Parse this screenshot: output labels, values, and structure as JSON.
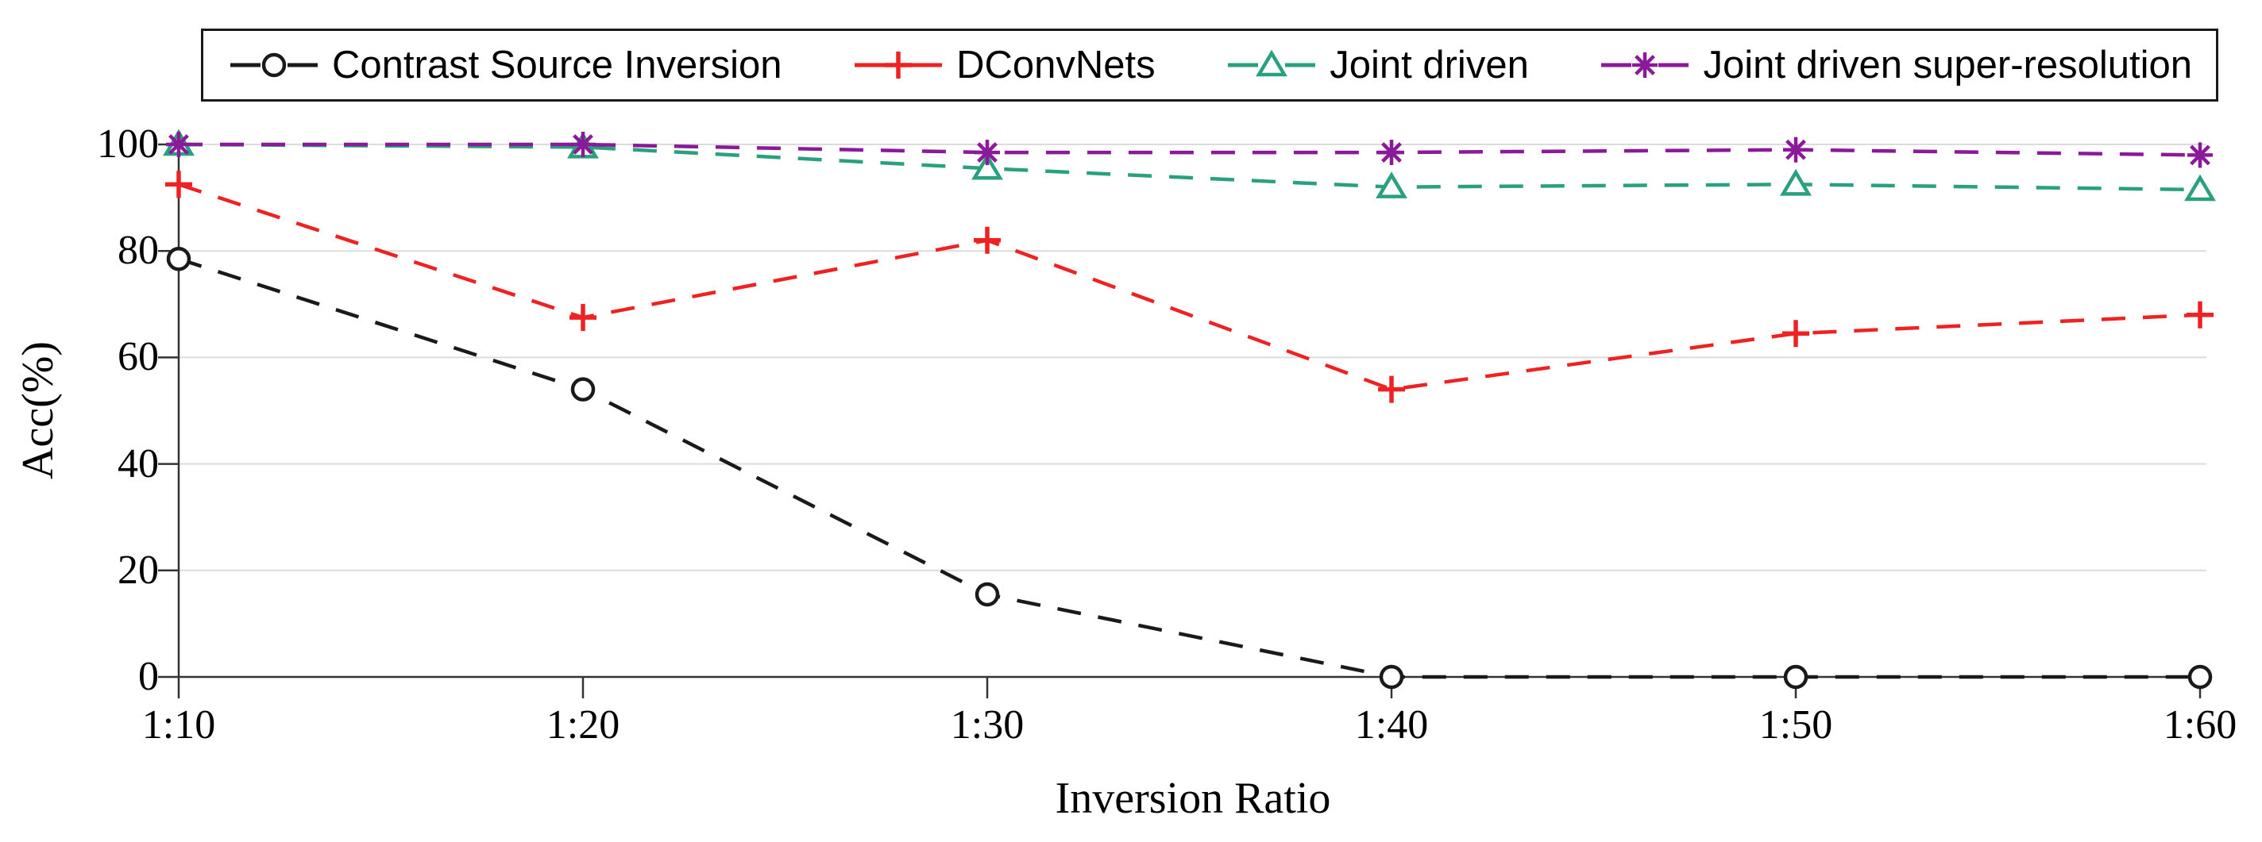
{
  "chart_data": {
    "type": "line",
    "title": "",
    "xlabel": "Inversion Ratio",
    "ylabel": "Acc(%)",
    "categories": [
      "1:10",
      "1:20",
      "1:30",
      "1:40",
      "1:50",
      "1:60"
    ],
    "yticks": [
      "0",
      "20",
      "40",
      "60",
      "80",
      "100"
    ],
    "ytick_values": [
      0,
      20,
      40,
      60,
      80,
      100
    ],
    "ylim": [
      0,
      100
    ],
    "grid": "horizontal-light-gray",
    "line_style": "dashed",
    "legend_position": "top",
    "series": [
      {
        "name": "Contrast Source Inversion",
        "marker": "circle",
        "color": "#1a1a1a",
        "values": [
          78.5,
          54,
          15.5,
          0,
          0,
          0
        ]
      },
      {
        "name": "DConvNets",
        "marker": "plus",
        "color": "#ee2222",
        "values": [
          92.5,
          67.5,
          82,
          54,
          64.5,
          68
        ]
      },
      {
        "name": "Joint driven",
        "marker": "triangle",
        "color": "#2aa17e",
        "values": [
          100,
          99.5,
          95.5,
          92,
          92.5,
          91.5
        ]
      },
      {
        "name": "Joint driven super-resolution",
        "marker": "asterisk",
        "color": "#8b1a9b",
        "values": [
          100,
          100,
          98.5,
          98.5,
          99,
          98
        ]
      }
    ]
  }
}
